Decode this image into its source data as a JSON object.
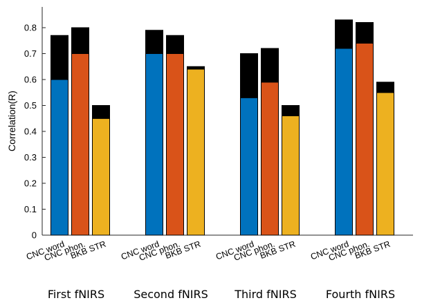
{
  "chart_data": {
    "type": "bar",
    "ylabel": "Correlation(R)",
    "xlabel": "",
    "title": "",
    "ylim": [
      0,
      0.88
    ],
    "yticks": [
      0,
      0.1,
      0.2,
      0.3,
      0.4,
      0.5,
      0.6,
      0.7,
      0.8
    ],
    "ytick_labels": [
      "0",
      "0.1",
      "0.2",
      "0.3",
      "0.4",
      "0.5",
      "0.6",
      "0.7",
      "0.8"
    ],
    "grid": false,
    "groups": [
      "First fNIRS",
      "Second fNIRS",
      "Third fNIRS",
      "Fourth fNIRS"
    ],
    "categories": [
      "CNC word",
      "CNC phon.",
      "BKB STR"
    ],
    "series": [
      {
        "color": "#0072BD",
        "base_values": [
          0.6,
          0.7,
          0.53,
          0.72
        ],
        "total_values": [
          0.77,
          0.79,
          0.7,
          0.83
        ]
      },
      {
        "color": "#D95319",
        "base_values": [
          0.7,
          0.7,
          0.59,
          0.74
        ],
        "total_values": [
          0.8,
          0.77,
          0.72,
          0.82
        ]
      },
      {
        "color": "#EDB120",
        "base_values": [
          0.45,
          0.64,
          0.46,
          0.55
        ],
        "total_values": [
          0.5,
          0.65,
          0.5,
          0.59
        ]
      }
    ],
    "increment_color": "#000000"
  }
}
